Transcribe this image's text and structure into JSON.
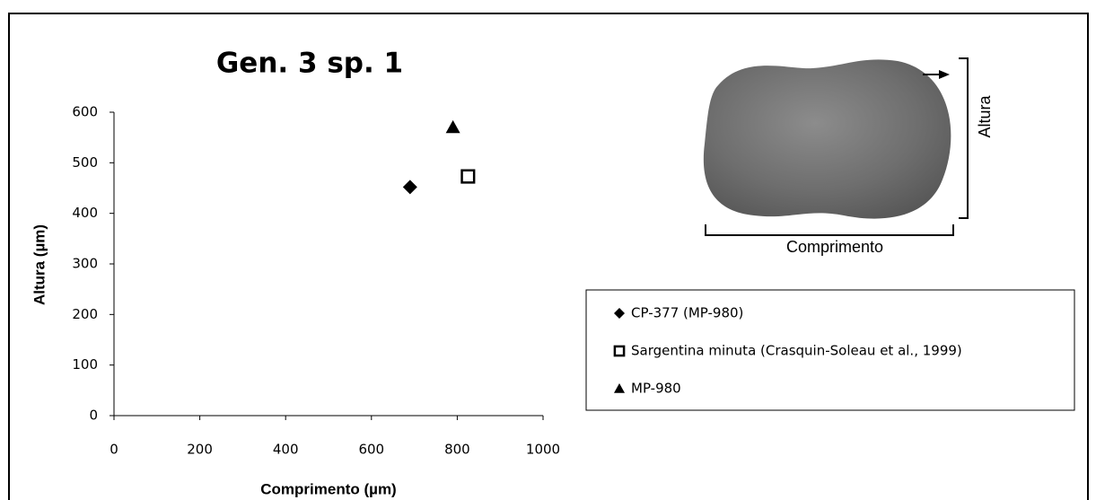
{
  "chart_data": {
    "type": "scatter",
    "title": "Gen. 3 sp. 1",
    "x_label": "Comprimento (µm)",
    "y_label": "Altura (µm)",
    "xlim": [
      0,
      1000
    ],
    "xticks": [
      0,
      200,
      400,
      600,
      800,
      1000
    ],
    "ylim": [
      0,
      600
    ],
    "yticks": [
      0,
      100,
      200,
      300,
      400,
      500,
      600
    ],
    "grid": false,
    "legend": "right",
    "series": [
      {
        "name": "CP-377 (MP-980)",
        "color": "#000000",
        "marker": "diamond",
        "x": [
          690
        ],
        "values": [
          452
        ]
      },
      {
        "name": "Sargentina minuta (Crasquin-Soleau et al., 1999)",
        "color": "#000000",
        "marker": "square-open",
        "x": [
          825
        ],
        "values": [
          473
        ]
      },
      {
        "name": "MP-980",
        "color": "#000000",
        "marker": "triangle",
        "x": [
          790
        ],
        "values": [
          570
        ]
      }
    ],
    "annotations": [
      "Altura",
      "Comprimento"
    ]
  }
}
